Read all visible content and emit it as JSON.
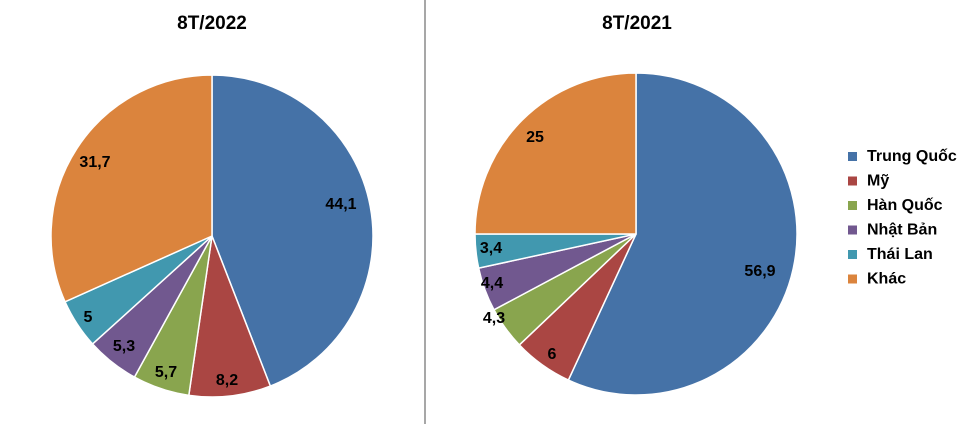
{
  "chart_data": {
    "type": "pie",
    "series_names": [
      "Trung Quốc",
      "Mỹ",
      "Hàn Quốc",
      "Nhật Bản",
      "Thái Lan",
      "Khác"
    ],
    "colors": [
      "#4572A7",
      "#AA4643",
      "#89A54E",
      "#71588F",
      "#4198AF",
      "#DB843D"
    ],
    "legend_position": "right",
    "pies": [
      {
        "title": "8T/2022",
        "values": [
          44.1,
          8.2,
          5.7,
          5.3,
          5,
          31.7
        ],
        "labels": [
          "44,1",
          "8,2",
          "5,7",
          "5,3",
          "5",
          "31,7"
        ]
      },
      {
        "title": "8T/2021",
        "values": [
          56.9,
          6,
          4.3,
          4.4,
          3.4,
          25
        ],
        "labels": [
          "56,9",
          "6",
          "4,3",
          "4,4",
          "3,4",
          "25"
        ]
      }
    ]
  }
}
